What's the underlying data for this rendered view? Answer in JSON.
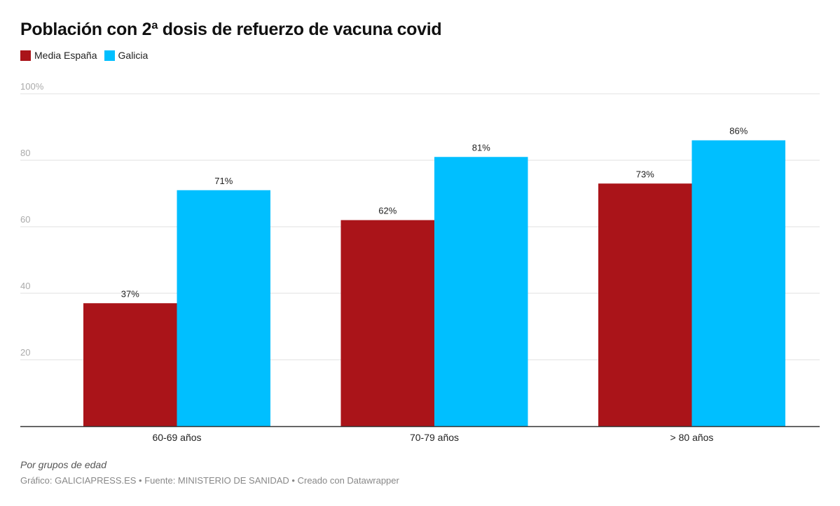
{
  "chart_data": {
    "type": "bar",
    "title": "Población con 2ª dosis de refuerzo de vacuna covid",
    "categories": [
      "60-69 años",
      "70-79 años",
      "> 80 años"
    ],
    "series": [
      {
        "name": "Media España",
        "color": "#aa1419",
        "values": [
          37,
          62,
          73
        ],
        "labels": [
          "37%",
          "62%",
          "73%"
        ]
      },
      {
        "name": "Galicia",
        "color": "#00bfff",
        "values": [
          71,
          81,
          86
        ],
        "labels": [
          "71%",
          "81%",
          "86%"
        ]
      }
    ],
    "ylim": [
      0,
      100
    ],
    "yticks": [
      20,
      40,
      60,
      80,
      100
    ],
    "ytick_labels": [
      "20",
      "40",
      "60",
      "80",
      "100%"
    ],
    "grid": true,
    "legend_position": "top-left",
    "notes": "Por grupos de edad",
    "source": "Gráfico: GALICIAPRESS.ES • Fuente: MINISTERIO DE SANIDAD • Creado con Datawrapper"
  }
}
